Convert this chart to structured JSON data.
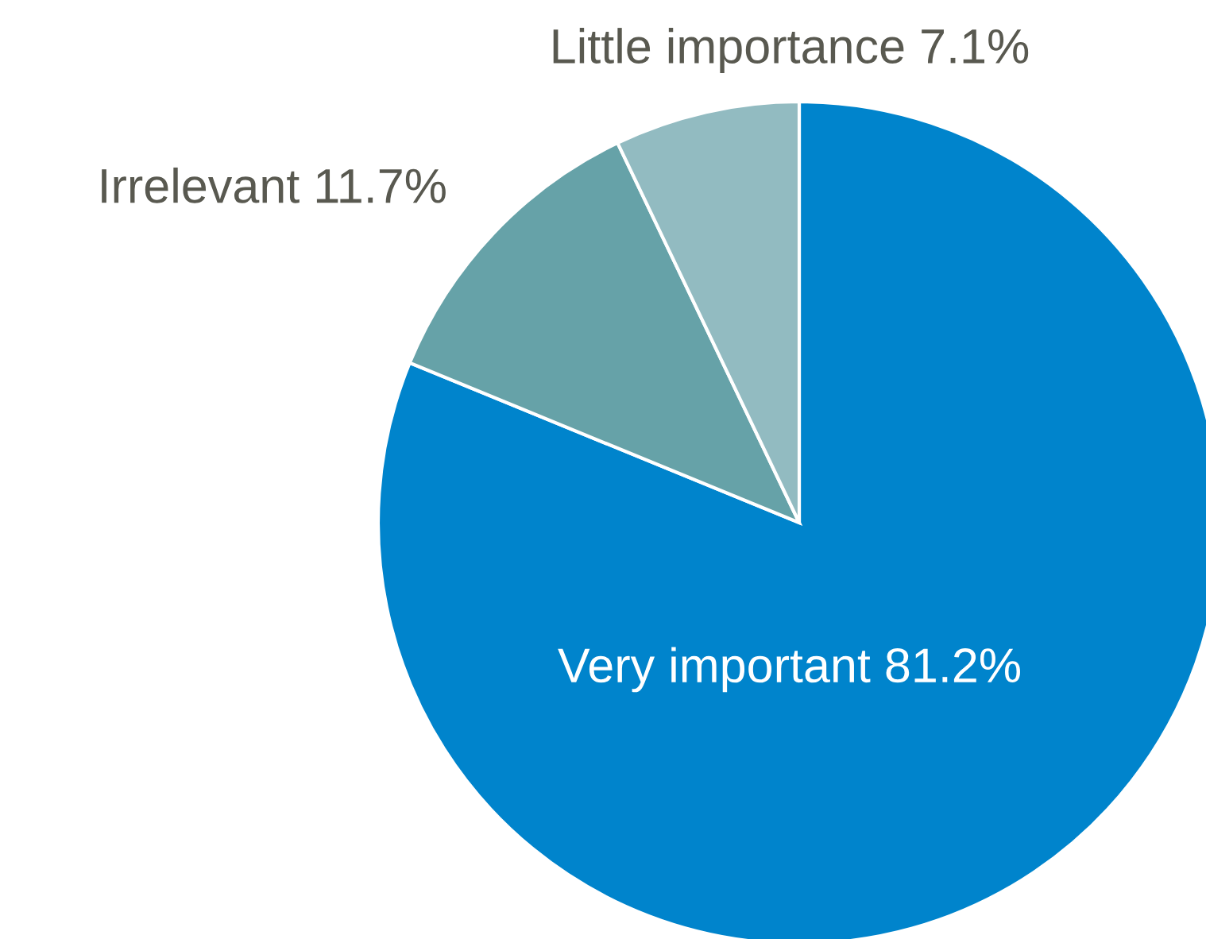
{
  "chart_data": {
    "type": "pie",
    "categories": [
      "Very important",
      "Irrelevant",
      "Little importance"
    ],
    "values": [
      81.2,
      11.7,
      7.1
    ],
    "value_labels": [
      "81.2%",
      "11.7%",
      "7.1%"
    ],
    "colors": [
      "#0084cc",
      "#66a2a8",
      "#92bbc1"
    ]
  }
}
